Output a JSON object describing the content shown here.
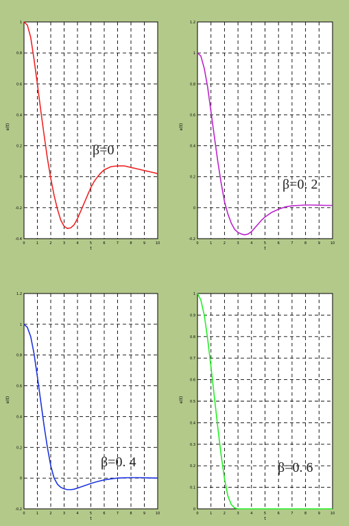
{
  "chart_data": [
    {
      "type": "line",
      "title": "",
      "xlabel": "t",
      "ylabel": "e(t)",
      "xlim": [
        0,
        10
      ],
      "ylim": [
        -0.4,
        1
      ],
      "xticks": [
        "0",
        "1",
        "2",
        "3",
        "4",
        "5",
        "6",
        "7",
        "8",
        "9",
        "10"
      ],
      "yticks": [
        "-0.4",
        "-0.2",
        "0",
        "0.2",
        "0.4",
        "0.6",
        "0.8",
        "1"
      ],
      "grid": true,
      "annotation": "β=0",
      "color": "#ee2222",
      "series": [
        {
          "x": [
            0,
            0.25,
            0.5,
            0.75,
            1,
            1.25,
            1.5,
            1.75,
            2,
            2.25,
            2.5,
            2.75,
            3,
            3.25,
            3.5,
            3.75,
            4,
            4.25,
            4.5,
            4.75,
            5,
            5.25,
            5.5,
            5.75,
            6,
            6.5,
            7,
            7.5,
            8,
            8.5,
            9,
            9.5,
            10
          ],
          "y": [
            1,
            0.98,
            0.9,
            0.76,
            0.6,
            0.43,
            0.27,
            0.12,
            -0.01,
            -0.12,
            -0.21,
            -0.28,
            -0.32,
            -0.335,
            -0.33,
            -0.31,
            -0.27,
            -0.22,
            -0.17,
            -0.12,
            -0.07,
            -0.03,
            0,
            0.025,
            0.045,
            0.065,
            0.07,
            0.07,
            0.06,
            0.05,
            0.04,
            0.03,
            0.02
          ]
        }
      ]
    },
    {
      "type": "line",
      "title": "",
      "xlabel": "t",
      "ylabel": "e(t)",
      "xlim": [
        0,
        10
      ],
      "ylim": [
        -0.2,
        1.2
      ],
      "xticks": [
        "0",
        "1",
        "2",
        "3",
        "4",
        "5",
        "6",
        "7",
        "8",
        "9",
        "10"
      ],
      "yticks": [
        "-0.2",
        "0",
        "0.2",
        "0.4",
        "0.6",
        "0.8",
        "1",
        "1.2"
      ],
      "grid": true,
      "annotation": "β=0. 2",
      "color": "#bb22cc",
      "series": [
        {
          "x": [
            0,
            0.25,
            0.5,
            0.75,
            1,
            1.25,
            1.5,
            1.75,
            2,
            2.25,
            2.5,
            2.75,
            3,
            3.25,
            3.5,
            3.75,
            4,
            4.25,
            4.5,
            4.75,
            5,
            5.5,
            6,
            6.5,
            7,
            7.5,
            8,
            8.5,
            9,
            9.5,
            10
          ],
          "y": [
            1,
            0.98,
            0.9,
            0.78,
            0.62,
            0.46,
            0.3,
            0.16,
            0.04,
            -0.04,
            -0.1,
            -0.14,
            -0.16,
            -0.17,
            -0.175,
            -0.17,
            -0.155,
            -0.13,
            -0.105,
            -0.08,
            -0.06,
            -0.03,
            -0.01,
            0.005,
            0.012,
            0.015,
            0.017,
            0.017,
            0.016,
            0.015,
            0.015
          ]
        }
      ]
    },
    {
      "type": "line",
      "title": "",
      "xlabel": "t",
      "ylabel": "e(t)",
      "xlim": [
        0,
        10
      ],
      "ylim": [
        -0.2,
        1.2
      ],
      "xticks": [
        "0",
        "1",
        "2",
        "3",
        "4",
        "5",
        "6",
        "7",
        "8",
        "9",
        "10"
      ],
      "yticks": [
        "-0.2",
        "0",
        "0.2",
        "0.4",
        "0.6",
        "0.8",
        "1",
        "1.2"
      ],
      "grid": true,
      "annotation": "β=0. 4",
      "color": "#1a33dd",
      "series": [
        {
          "x": [
            0,
            0.25,
            0.5,
            0.75,
            1,
            1.25,
            1.5,
            1.75,
            2,
            2.25,
            2.5,
            2.75,
            3,
            3.25,
            3.5,
            3.75,
            4,
            4.5,
            5,
            5.5,
            6,
            6.5,
            7,
            7.5,
            8,
            8.5,
            9,
            9.5,
            10
          ],
          "y": [
            1,
            0.98,
            0.92,
            0.81,
            0.66,
            0.5,
            0.34,
            0.2,
            0.08,
            0,
            -0.04,
            -0.06,
            -0.07,
            -0.075,
            -0.075,
            -0.072,
            -0.065,
            -0.05,
            -0.035,
            -0.022,
            -0.012,
            -0.005,
            0,
            0.002,
            0.003,
            0.003,
            0.002,
            0.001,
            0
          ]
        }
      ]
    },
    {
      "type": "line",
      "title": "",
      "xlabel": "t",
      "ylabel": "e(t)",
      "xlim": [
        0,
        10
      ],
      "ylim": [
        0,
        1
      ],
      "xticks": [
        "0",
        "1",
        "2",
        "3",
        "4",
        "5",
        "6",
        "7",
        "8",
        "9",
        "10"
      ],
      "yticks": [
        "0",
        "0.1",
        "0.2",
        "0.3",
        "0.4",
        "0.5",
        "0.6",
        "0.7",
        "0.8",
        "0.9",
        "1"
      ],
      "grid": true,
      "annotation": "β=0. 6",
      "color": "#22ee22",
      "series": [
        {
          "x": [
            0,
            0.25,
            0.5,
            0.75,
            1,
            1.25,
            1.5,
            1.75,
            2,
            2.25,
            2.5,
            2.75,
            3,
            3.5,
            4,
            5,
            6,
            7,
            8,
            9,
            10
          ],
          "y": [
            1,
            0.97,
            0.9,
            0.79,
            0.66,
            0.52,
            0.38,
            0.25,
            0.14,
            0.06,
            0.02,
            0.004,
            0,
            0,
            0,
            0,
            0,
            0,
            0,
            0,
            0
          ]
        }
      ]
    }
  ]
}
